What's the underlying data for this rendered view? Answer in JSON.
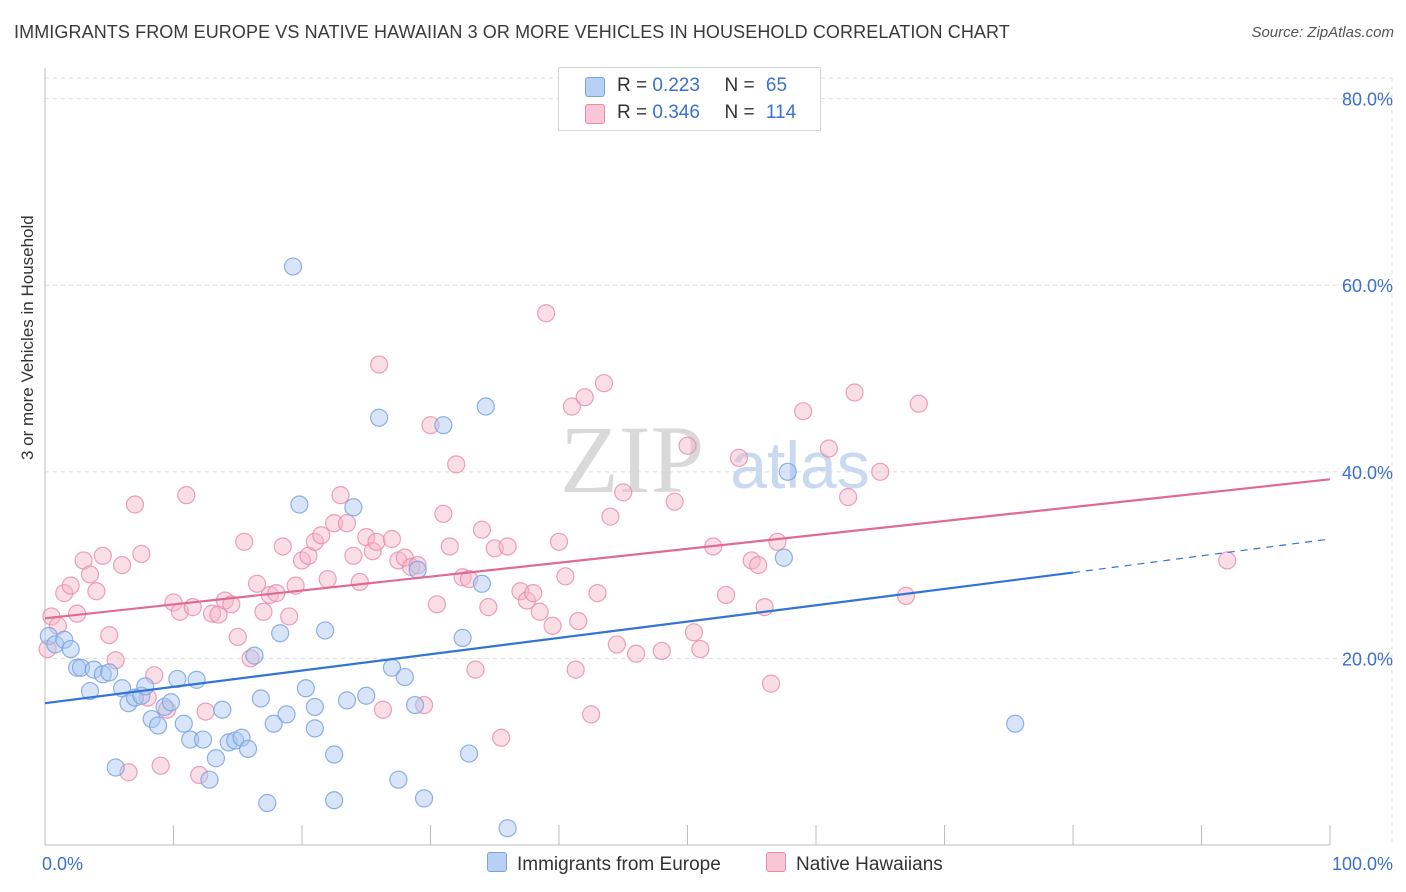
{
  "title": "IMMIGRANTS FROM EUROPE VS NATIVE HAWAIIAN 3 OR MORE VEHICLES IN HOUSEHOLD CORRELATION CHART",
  "source": "Source: ZipAtlas.com",
  "watermark": {
    "zip": "ZIP",
    "atlas": "atlas"
  },
  "legend": {
    "rows": [
      {
        "r_label": "R =",
        "r_value": "0.223",
        "n_label": "N =",
        "n_value": "65"
      },
      {
        "r_label": "R =",
        "r_value": "0.346",
        "n_label": "N =",
        "n_value": "114"
      }
    ]
  },
  "bottom_legend": {
    "europe": "Immigrants from Europe",
    "hawaiian": "Native Hawaiians"
  },
  "colors": {
    "europe_fill": "#a9c6f0",
    "europe_stroke": "#7aa3e0",
    "europe_line": "#3274d6",
    "hawaiian_fill": "#f5b6c8",
    "hawaiian_stroke": "#e98aa8",
    "hawaiian_line": "#e06a93",
    "tick_label": "#3b6fd0",
    "grid": "#dcdcdc"
  },
  "chart_data": {
    "type": "scatter",
    "title": "IMMIGRANTS FROM EUROPE VS NATIVE HAWAIIAN 3 OR MORE VEHICLES IN HOUSEHOLD CORRELATION CHART",
    "xlabel": "",
    "ylabel": "3 or more Vehicles in Household",
    "xlim": [
      0,
      100
    ],
    "ylim": [
      0,
      82
    ],
    "x_tick_labels": [
      "0.0%",
      "100.0%"
    ],
    "y_ticks": [
      20,
      40,
      60,
      80
    ],
    "y_tick_labels": [
      "20.0%",
      "40.0%",
      "60.0%",
      "80.0%"
    ],
    "series": [
      {
        "name": "Immigrants from Europe",
        "r": 0.223,
        "n": 65,
        "trend": {
          "x0": 0,
          "y0": 15.2,
          "x1": 80,
          "y1": 29.2,
          "dash_to_x": 100,
          "dash_to_y": 32.8
        },
        "points": [
          [
            0.3,
            22.4
          ],
          [
            0.8,
            21.5
          ],
          [
            1.5,
            22
          ],
          [
            2.0,
            21
          ],
          [
            2.5,
            19
          ],
          [
            2.8,
            19
          ],
          [
            3.5,
            16.5
          ],
          [
            3.8,
            18.8
          ],
          [
            4.5,
            18.3
          ],
          [
            5,
            18.5
          ],
          [
            5.5,
            8.3
          ],
          [
            6,
            16.8
          ],
          [
            6.5,
            15.2
          ],
          [
            7,
            15.8
          ],
          [
            7.5,
            16
          ],
          [
            7.8,
            17
          ],
          [
            8.3,
            13.5
          ],
          [
            8.8,
            12.8
          ],
          [
            9.3,
            14.8
          ],
          [
            9.8,
            15.3
          ],
          [
            10.3,
            17.8
          ],
          [
            10.8,
            13
          ],
          [
            11.3,
            11.3
          ],
          [
            11.8,
            17.7
          ],
          [
            12.3,
            11.3
          ],
          [
            12.8,
            7
          ],
          [
            13.3,
            9.3
          ],
          [
            13.8,
            14.5
          ],
          [
            14.3,
            11
          ],
          [
            14.8,
            11.2
          ],
          [
            15.3,
            11.5
          ],
          [
            15.8,
            10.3
          ],
          [
            16.3,
            20.3
          ],
          [
            16.8,
            15.7
          ],
          [
            17.3,
            4.5
          ],
          [
            17.8,
            13
          ],
          [
            18.3,
            22.7
          ],
          [
            18.8,
            14
          ],
          [
            19.3,
            62
          ],
          [
            19.8,
            36.5
          ],
          [
            20.3,
            16.8
          ],
          [
            21,
            14.8
          ],
          [
            21,
            12.5
          ],
          [
            21.8,
            23
          ],
          [
            22.5,
            9.7
          ],
          [
            22.5,
            4.8
          ],
          [
            23.5,
            15.5
          ],
          [
            24,
            36.2
          ],
          [
            25,
            16
          ],
          [
            26,
            45.8
          ],
          [
            27,
            19
          ],
          [
            27.5,
            7
          ],
          [
            28,
            18
          ],
          [
            28.8,
            15
          ],
          [
            29,
            29.5
          ],
          [
            29.5,
            5
          ],
          [
            31,
            45
          ],
          [
            32.5,
            22.2
          ],
          [
            33,
            9.8
          ],
          [
            34,
            28
          ],
          [
            34.3,
            47
          ],
          [
            36,
            1.8
          ],
          [
            57.5,
            30.8
          ],
          [
            57.8,
            40
          ],
          [
            75.5,
            13
          ]
        ]
      },
      {
        "name": "Native Hawaiians",
        "r": 0.346,
        "n": 114,
        "trend": {
          "x0": 0,
          "y0": 24.3,
          "x1": 100,
          "y1": 39.2
        },
        "points": [
          [
            0.2,
            21
          ],
          [
            0.5,
            24.5
          ],
          [
            1,
            23.5
          ],
          [
            1.5,
            27
          ],
          [
            2,
            27.8
          ],
          [
            2.5,
            24.8
          ],
          [
            3,
            30.5
          ],
          [
            3.5,
            29
          ],
          [
            4,
            27.2
          ],
          [
            4.5,
            31
          ],
          [
            5,
            22.5
          ],
          [
            5.5,
            19.8
          ],
          [
            6,
            30
          ],
          [
            6.5,
            7.8
          ],
          [
            7,
            36.5
          ],
          [
            7.5,
            31.2
          ],
          [
            8,
            15.8
          ],
          [
            8.5,
            18.2
          ],
          [
            9,
            8.5
          ],
          [
            9.5,
            14.5
          ],
          [
            10,
            26
          ],
          [
            10.5,
            25
          ],
          [
            11,
            37.5
          ],
          [
            11.5,
            25.5
          ],
          [
            12,
            7.5
          ],
          [
            12.5,
            14.3
          ],
          [
            13,
            24.8
          ],
          [
            13.5,
            24.7
          ],
          [
            14,
            26.2
          ],
          [
            14.5,
            25.8
          ],
          [
            15,
            22.3
          ],
          [
            15.5,
            32.5
          ],
          [
            16,
            20
          ],
          [
            16.5,
            28
          ],
          [
            17,
            25
          ],
          [
            17.5,
            26.8
          ],
          [
            18,
            27
          ],
          [
            18.5,
            32
          ],
          [
            19,
            24.5
          ],
          [
            19.5,
            27.8
          ],
          [
            20,
            30.5
          ],
          [
            20.5,
            31
          ],
          [
            21,
            32.5
          ],
          [
            21.5,
            33.2
          ],
          [
            22,
            28.5
          ],
          [
            22.5,
            34.5
          ],
          [
            23,
            37.5
          ],
          [
            23.5,
            34.5
          ],
          [
            24,
            31
          ],
          [
            24.5,
            28.2
          ],
          [
            25,
            33
          ],
          [
            25.5,
            31.5
          ],
          [
            25.8,
            32.5
          ],
          [
            26,
            51.5
          ],
          [
            26.3,
            14.5
          ],
          [
            27,
            32.8
          ],
          [
            27.5,
            30.5
          ],
          [
            28,
            30.8
          ],
          [
            28.5,
            29.8
          ],
          [
            29,
            30
          ],
          [
            29.5,
            15
          ],
          [
            30,
            45
          ],
          [
            30.5,
            25.8
          ],
          [
            31,
            35.5
          ],
          [
            31.5,
            32
          ],
          [
            32,
            40.8
          ],
          [
            32.5,
            28.7
          ],
          [
            33,
            28.5
          ],
          [
            33.5,
            18.8
          ],
          [
            34,
            33.8
          ],
          [
            34.5,
            25.5
          ],
          [
            35,
            31.8
          ],
          [
            35.5,
            11.5
          ],
          [
            36,
            32
          ],
          [
            37,
            27.2
          ],
          [
            37.5,
            26.2
          ],
          [
            38,
            27
          ],
          [
            38.5,
            25
          ],
          [
            39,
            57
          ],
          [
            39.5,
            23.5
          ],
          [
            40,
            32.5
          ],
          [
            40.5,
            28.8
          ],
          [
            41,
            47
          ],
          [
            41.3,
            18.8
          ],
          [
            41.5,
            24
          ],
          [
            42,
            48
          ],
          [
            42.5,
            14
          ],
          [
            43,
            27
          ],
          [
            43.5,
            49.5
          ],
          [
            44,
            35.2
          ],
          [
            44.5,
            21.5
          ],
          [
            45,
            37.8
          ],
          [
            46,
            20.5
          ],
          [
            48,
            20.8
          ],
          [
            49,
            36.8
          ],
          [
            50,
            42.8
          ],
          [
            50.5,
            22.8
          ],
          [
            51,
            21
          ],
          [
            52,
            32
          ],
          [
            53,
            26.8
          ],
          [
            54,
            41.5
          ],
          [
            55,
            30.5
          ],
          [
            55.5,
            30
          ],
          [
            56,
            25.5
          ],
          [
            56.5,
            17.3
          ],
          [
            57,
            32.5
          ],
          [
            59,
            46.5
          ],
          [
            61,
            42.5
          ],
          [
            62.5,
            37.3
          ],
          [
            63,
            48.5
          ],
          [
            65,
            40
          ],
          [
            67,
            26.7
          ],
          [
            68,
            47.3
          ],
          [
            92,
            30.5
          ]
        ]
      }
    ]
  }
}
